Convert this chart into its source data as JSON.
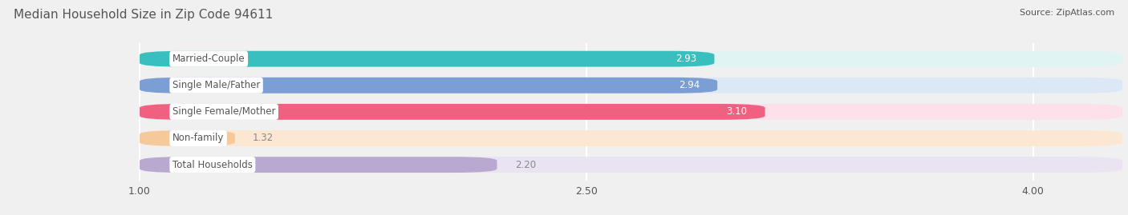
{
  "title": "Median Household Size in Zip Code 94611",
  "source": "Source: ZipAtlas.com",
  "categories": [
    "Married-Couple",
    "Single Male/Father",
    "Single Female/Mother",
    "Non-family",
    "Total Households"
  ],
  "values": [
    2.93,
    2.94,
    3.1,
    1.32,
    2.2
  ],
  "bar_colors": [
    "#3abfbf",
    "#7b9fd4",
    "#f06080",
    "#f5c99a",
    "#b9a8d0"
  ],
  "bar_bg_colors": [
    "#e0f4f4",
    "#dde8f7",
    "#fce0ea",
    "#fce8d2",
    "#eae4f2"
  ],
  "value_outside_bar": [
    false,
    false,
    false,
    true,
    true
  ],
  "value_label_color_inside": "white",
  "value_label_color_outside": "#888888",
  "xlim_left": 0.55,
  "xlim_right": 4.3,
  "xstart": 1.0,
  "xticks": [
    1.0,
    2.5,
    4.0
  ],
  "xtick_labels": [
    "1.00",
    "2.50",
    "4.00"
  ],
  "label_bg_color": "white",
  "label_text_color": "#555555",
  "title_color": "#555555",
  "title_fontsize": 11,
  "bar_height": 0.6,
  "label_fontsize": 8.5,
  "value_fontsize": 8.5,
  "tick_fontsize": 9,
  "source_fontsize": 8,
  "background_color": "#f0f0f0",
  "grid_color": "white",
  "bar_gap": 0.18
}
